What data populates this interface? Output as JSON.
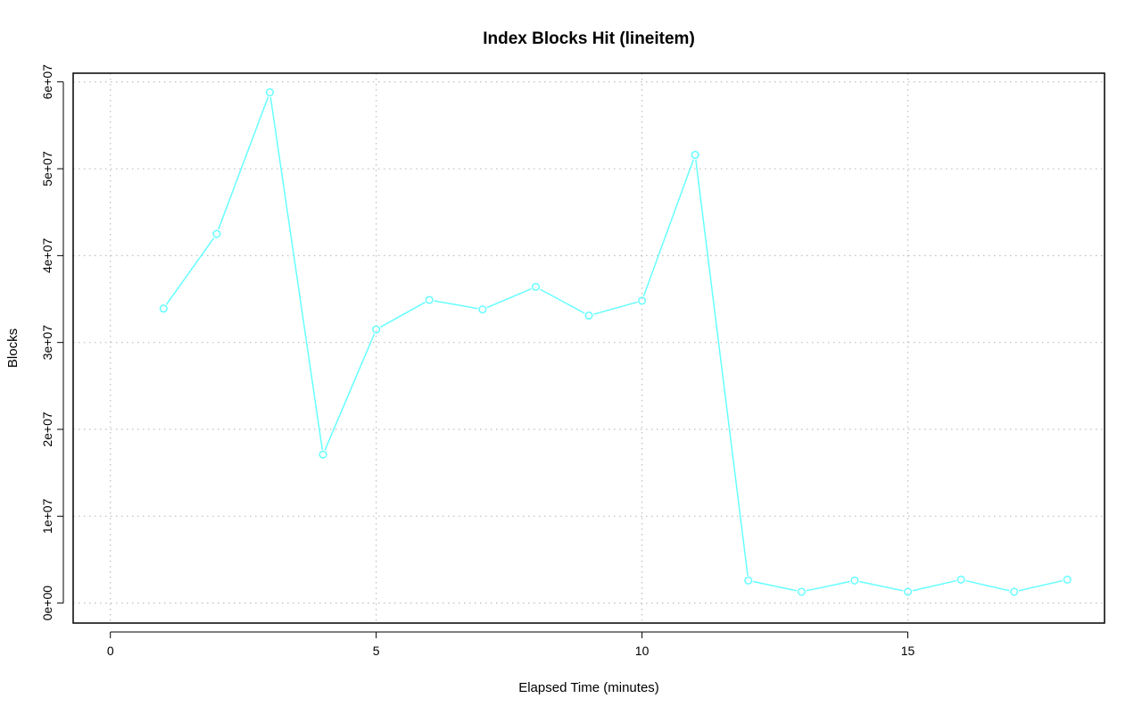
{
  "chart_data": {
    "type": "line",
    "title": "Index Blocks Hit (lineitem)",
    "xlabel": "Elapsed Time (minutes)",
    "ylabel": "Blocks",
    "xlim": [
      -0.7,
      18.7
    ],
    "ylim": [
      -2300000,
      61000000
    ],
    "x_ticks": [
      0,
      5,
      10,
      15
    ],
    "x_tick_labels": [
      "0",
      "5",
      "10",
      "15"
    ],
    "y_ticks": [
      0,
      10000000,
      20000000,
      30000000,
      40000000,
      50000000,
      60000000
    ],
    "y_tick_labels": [
      "0e+00",
      "1e+07",
      "2e+07",
      "3e+07",
      "4e+07",
      "5e+07",
      "6e+07"
    ],
    "grid": true,
    "color": "#66ffff",
    "x": [
      1,
      2,
      3,
      4,
      5,
      6,
      7,
      8,
      9,
      10,
      11,
      12,
      13,
      14,
      15,
      16,
      17,
      18
    ],
    "values": [
      33900000,
      42500000,
      58800000,
      17100000,
      31500000,
      34900000,
      33800000,
      36400000,
      33100000,
      34800000,
      51600000,
      2600000,
      1300000,
      2600000,
      1300000,
      2700000,
      1300000,
      2700000
    ]
  }
}
